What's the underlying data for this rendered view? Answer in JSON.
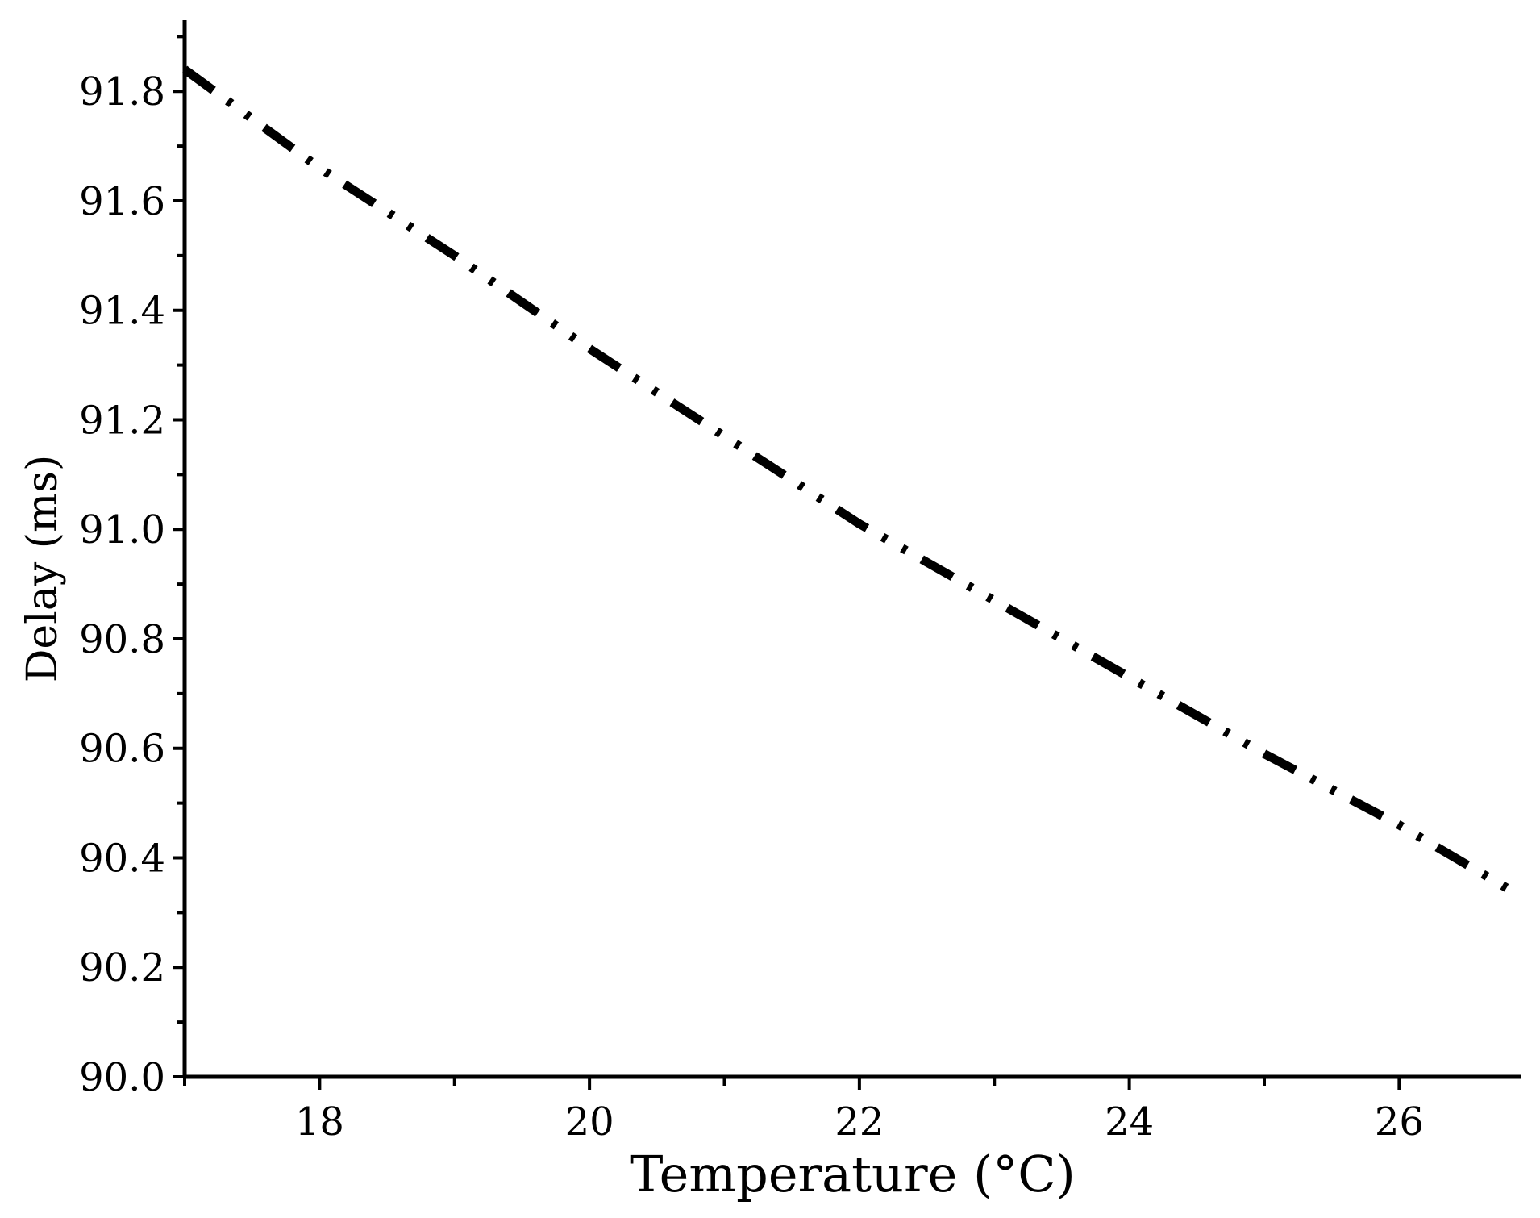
{
  "chart_data": {
    "type": "line",
    "title": "",
    "xlabel": "Temperature (°C)",
    "ylabel": "Delay (ms)",
    "xlim": [
      17,
      26.9
    ],
    "ylim": [
      90.0,
      91.93
    ],
    "x_ticks": [
      18,
      20,
      22,
      24,
      26
    ],
    "x_tick_labels": [
      "18",
      "20",
      "22",
      "24",
      "26"
    ],
    "x_minor_ticks": [
      17,
      19,
      21,
      23,
      25
    ],
    "y_ticks": [
      90.0,
      90.2,
      90.4,
      90.6,
      90.8,
      91.0,
      91.2,
      91.4,
      91.6,
      91.8
    ],
    "y_tick_labels": [
      "90.0",
      "90.2",
      "90.4",
      "90.6",
      "90.8",
      "91.0",
      "91.2",
      "91.4",
      "91.6",
      "91.8"
    ],
    "y_minor_ticks": [
      90.1,
      90.3,
      90.5,
      90.7,
      90.9,
      91.1,
      91.3,
      91.5,
      91.7,
      91.9
    ],
    "grid": false,
    "legend": "none",
    "line_style": "dash-dot-dot",
    "line_color": "#000000",
    "series": [
      {
        "x": [
          17.0,
          18.0,
          19.0,
          20.0,
          21.0,
          22.0,
          23.0,
          24.0,
          25.0,
          26.0,
          26.9
        ],
        "values": [
          91.84,
          91.66,
          91.5,
          91.33,
          91.17,
          91.01,
          90.87,
          90.73,
          90.59,
          90.46,
          90.33
        ]
      }
    ]
  }
}
